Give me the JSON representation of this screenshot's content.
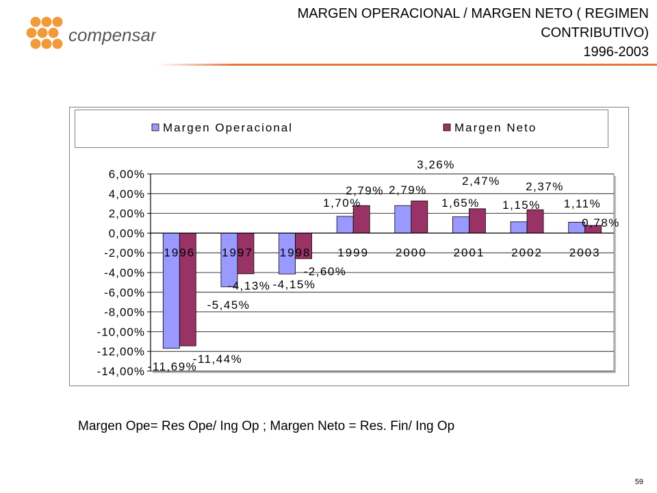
{
  "header": {
    "brand": "compensar",
    "title_line1": "MARGEN OPERACIONAL / MARGEN NETO ( REGIMEN",
    "title_line2": "CONTRIBUTIVO)",
    "title_line3": "1996-2003"
  },
  "footer": {
    "formula": "Margen Ope= Res Ope/ Ing Op ; Margen Neto = Res. Fin/ Ing Op",
    "page_number": "59"
  },
  "colors": {
    "logo_orange": "#f29a3a",
    "accent_rule": "#e8743b",
    "series_operacional": "#9999ff",
    "series_neto": "#993366"
  },
  "chart_data": {
    "type": "bar",
    "categories": [
      "1996",
      "1997",
      "1998",
      "1999",
      "2000",
      "2001",
      "2002",
      "2003"
    ],
    "series": [
      {
        "name": "Margen Operacional",
        "values": [
          -11.69,
          -5.45,
          -4.15,
          1.7,
          2.79,
          1.65,
          1.15,
          1.11
        ],
        "labels": [
          "-11,69%",
          "-5,45%",
          "-4,15%",
          "1,70%",
          "2,79%",
          "1,65%",
          "1,15%",
          "1,11%"
        ]
      },
      {
        "name": "Margen Neto",
        "values": [
          -11.44,
          -4.13,
          -2.6,
          2.79,
          3.26,
          2.47,
          2.37,
          0.78
        ],
        "labels": [
          "-11,44%",
          "-4,13%",
          "-2,60%",
          "2,79%",
          "3,26%",
          "2,47%",
          "2,37%",
          "0,78%"
        ]
      }
    ],
    "y_ticks": [
      "6,00%",
      "4,00%",
      "2,00%",
      "0,00%",
      "-2,00%",
      "-4,00%",
      "-6,00%",
      "-8,00%",
      "-10,00%",
      "-12,00%",
      "-14,00%"
    ],
    "ylim": [
      -14,
      6
    ],
    "grid": true,
    "legend_position": "top"
  }
}
